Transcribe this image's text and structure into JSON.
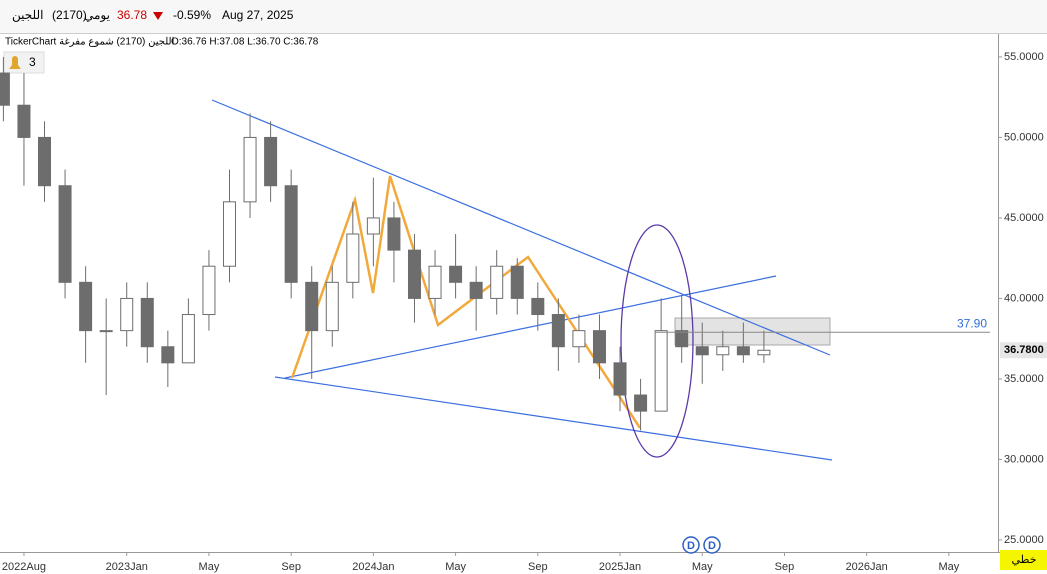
{
  "header": {
    "name": "اللجين",
    "code": "(2170)",
    "period": "يومي",
    "price": "36.78",
    "change": "-0.59%",
    "date": "Aug 27, 2025"
  },
  "chart_data": {
    "type": "candlestick",
    "title": "TickerChart اللجين (2170) شموع مفرغة",
    "ohlc_label": "O:36.76 H:37.08 L:36.70 C:36.78",
    "x": [
      "2022-07",
      "2022-08",
      "2022-09",
      "2022-10",
      "2022-11",
      "2022-12",
      "2023-01",
      "2023-02",
      "2023-03",
      "2023-04",
      "2023-05",
      "2023-06",
      "2023-07",
      "2023-08",
      "2023-09",
      "2023-10",
      "2023-11",
      "2023-12",
      "2024-01",
      "2024-02",
      "2024-03",
      "2024-04",
      "2024-05",
      "2024-06",
      "2024-07",
      "2024-08",
      "2024-09",
      "2024-10",
      "2024-11",
      "2024-12",
      "2025-01",
      "2025-02",
      "2025-03",
      "2025-04",
      "2025-05",
      "2025-06",
      "2025-07",
      "2025-08"
    ],
    "open": [
      54,
      52,
      50,
      47,
      41,
      38,
      38,
      40,
      37,
      36,
      39,
      42,
      46,
      50,
      47,
      41,
      38,
      41,
      44,
      45,
      43,
      40,
      42,
      41,
      40,
      42,
      40,
      39,
      37,
      38,
      36,
      34,
      33,
      38,
      37,
      36.5,
      37,
      36.5
    ],
    "high": [
      55,
      54,
      51,
      48,
      42,
      40,
      41,
      41,
      38,
      40,
      43,
      48,
      51.5,
      51,
      48,
      42,
      42,
      46,
      47.5,
      46,
      44,
      43,
      44,
      42,
      43,
      42.5,
      41,
      40,
      39,
      39,
      37,
      35,
      40,
      40.2,
      38.5,
      38,
      38.5,
      38
    ],
    "low": [
      51,
      47,
      46,
      40,
      36,
      34,
      37,
      36,
      34.5,
      36,
      38,
      41,
      45,
      46,
      40,
      35,
      37,
      40,
      42,
      41,
      38.5,
      39,
      40,
      38,
      39,
      39,
      38,
      35.5,
      36,
      35,
      33,
      31.8,
      33,
      36,
      34.7,
      35.5,
      36,
      36
    ],
    "close": [
      52,
      50,
      47,
      41,
      38,
      38,
      40,
      37,
      36,
      39,
      42,
      46,
      50,
      47,
      41,
      38,
      41,
      44,
      45,
      43,
      40,
      42,
      41,
      40,
      42,
      40,
      39,
      37,
      38,
      36,
      34,
      33,
      38,
      37,
      36.5,
      37,
      36.5,
      36.78
    ],
    "color": "#6d6d6d",
    "xlim": [
      "2022-07",
      "2026-07"
    ],
    "xticks": [
      {
        "value": "2022-08",
        "label": "2022Aug"
      },
      {
        "value": "2023-01",
        "label": "2023Jan"
      },
      {
        "value": "2023-05",
        "label": "May"
      },
      {
        "value": "2023-09",
        "label": "Sep"
      },
      {
        "value": "2024-01",
        "label": "2024Jan"
      },
      {
        "value": "2024-05",
        "label": "May"
      },
      {
        "value": "2024-09",
        "label": "Sep"
      },
      {
        "value": "2025-01",
        "label": "2025Jan"
      },
      {
        "value": "2025-05",
        "label": "May"
      },
      {
        "value": "2025-09",
        "label": "Sep"
      },
      {
        "value": "2026-01",
        "label": "2026Jan"
      },
      {
        "value": "2026-05",
        "label": "May"
      }
    ],
    "ylim": [
      24.25,
      56.3
    ],
    "yticks": [
      {
        "value": 25,
        "label": "25.0000"
      },
      {
        "value": 30,
        "label": "30.0000"
      },
      {
        "value": 35,
        "label": "35.0000"
      },
      {
        "value": 40,
        "label": "40.0000"
      },
      {
        "value": 45,
        "label": "45.0000"
      },
      {
        "value": 50,
        "label": "50.0000"
      },
      {
        "value": 55,
        "label": "55.0000"
      }
    ],
    "hline": {
      "value": 37.9,
      "label": "37.90",
      "color": "#2f6fd6"
    },
    "last_price": {
      "value": 36.78,
      "label": "36.7800"
    },
    "alert_count": 3,
    "markers": [
      "D",
      "D"
    ],
    "style_button": "خطي"
  }
}
